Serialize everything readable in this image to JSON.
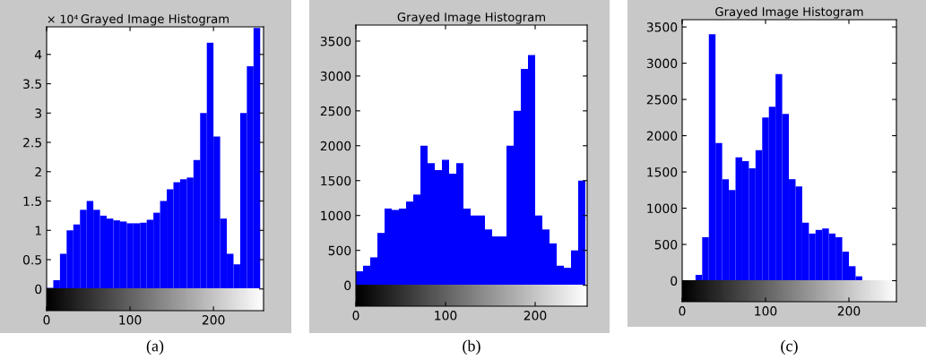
{
  "chart_data": [
    {
      "type": "histogram",
      "title": "Grayed Image Histogram",
      "color": "#0000ff",
      "bins": [
        0,
        8,
        16,
        24,
        32,
        40,
        48,
        56,
        64,
        72,
        80,
        88,
        96,
        104,
        112,
        120,
        128,
        136,
        144,
        152,
        160,
        168,
        176,
        184,
        192,
        200,
        208,
        216,
        224,
        232,
        240,
        248,
        256
      ],
      "values": [
        0.02,
        0.15,
        0.6,
        1.0,
        1.1,
        1.35,
        1.5,
        1.35,
        1.25,
        1.2,
        1.17,
        1.15,
        1.12,
        1.12,
        1.13,
        1.18,
        1.3,
        1.5,
        1.7,
        1.82,
        1.87,
        1.9,
        2.2,
        3.0,
        4.2,
        2.6,
        1.2,
        0.6,
        0.42,
        3.0,
        3.8,
        4.45
      ],
      "xlim": [
        0,
        260
      ],
      "xticks": [
        0,
        100,
        200
      ],
      "ylim": [
        -0.37,
        4.47
      ],
      "yticks": [
        0,
        0.5,
        1,
        1.5,
        2,
        2.5,
        3,
        3.5,
        4
      ],
      "grid": false,
      "annotations": [
        "× 10⁴",
        "(a)"
      ]
    },
    {
      "type": "histogram",
      "title": "Grayed Image Histogram",
      "color": "#0000ff",
      "bins": [
        0,
        8,
        16,
        24,
        32,
        40,
        48,
        56,
        64,
        72,
        80,
        88,
        96,
        104,
        112,
        120,
        128,
        136,
        144,
        152,
        160,
        168,
        176,
        184,
        192,
        200,
        208,
        216,
        224,
        232,
        240,
        248,
        256
      ],
      "values": [
        200,
        280,
        400,
        750,
        1100,
        1080,
        1100,
        1200,
        1300,
        2000,
        1750,
        1650,
        1800,
        1600,
        1750,
        1100,
        1000,
        1000,
        800,
        700,
        700,
        2000,
        2500,
        3100,
        3300,
        1000,
        800,
        600,
        280,
        250,
        500,
        1500
      ],
      "xlim": [
        0,
        258
      ],
      "xticks": [
        0,
        100,
        200
      ],
      "ylim": [
        -300,
        3730
      ],
      "yticks": [
        0,
        500,
        1000,
        1500,
        2000,
        2500,
        3000,
        3500
      ],
      "grid": false,
      "annotations": [
        "(b)"
      ]
    },
    {
      "type": "histogram",
      "title": "Grayed Image Histogram",
      "color": "#0000ff",
      "bins": [
        0,
        8,
        16,
        24,
        32,
        40,
        48,
        56,
        64,
        72,
        80,
        88,
        96,
        104,
        112,
        120,
        128,
        136,
        144,
        152,
        160,
        168,
        176,
        184,
        192,
        200,
        208,
        216,
        224,
        232,
        240,
        248,
        256
      ],
      "values": [
        0,
        null,
        80,
        600,
        3400,
        1900,
        1400,
        1250,
        1700,
        1650,
        1550,
        1800,
        2250,
        2400,
        2850,
        2300,
        1400,
        1300,
        800,
        650,
        700,
        720,
        650,
        600,
        400,
        200,
        60,
        null,
        0,
        0,
        0,
        0
      ],
      "xlim": [
        0,
        257
      ],
      "xticks": [
        0,
        100,
        200
      ],
      "ylim": [
        -290,
        3600
      ],
      "yticks": [
        0,
        500,
        1000,
        1500,
        2000,
        2500,
        3000,
        3500
      ],
      "grid": false,
      "annotations": [
        "(c)"
      ]
    }
  ]
}
